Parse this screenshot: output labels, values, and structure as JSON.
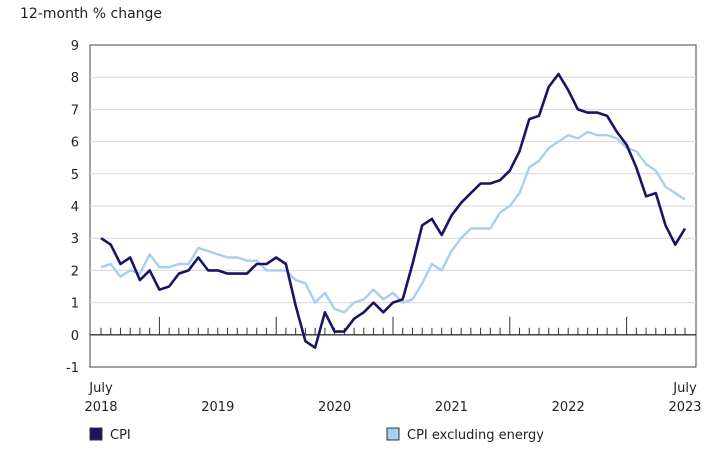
{
  "chart_data": {
    "type": "line",
    "ylabel": "12-month % change",
    "ylim": [
      -1,
      9
    ],
    "yticks": [
      -1,
      0,
      1,
      2,
      3,
      4,
      5,
      6,
      7,
      8,
      9
    ],
    "x_start": "2018-07",
    "x_end": "2023-07",
    "x_labels": [
      {
        "month_index": 0,
        "line1": "July",
        "line2": "2018"
      },
      {
        "month_index": 12,
        "line1": "",
        "line2": "2019"
      },
      {
        "month_index": 24,
        "line1": "",
        "line2": "2020"
      },
      {
        "month_index": 36,
        "line1": "",
        "line2": "2021"
      },
      {
        "month_index": 48,
        "line1": "",
        "line2": "2022"
      },
      {
        "month_index": 60,
        "line1": "July",
        "line2": "2023"
      }
    ],
    "grid": true,
    "legend_position": "bottom",
    "series": [
      {
        "name": "CPI",
        "color": "#1a1464",
        "values": [
          3.0,
          2.8,
          2.2,
          2.4,
          1.7,
          2.0,
          1.4,
          1.5,
          1.9,
          2.0,
          2.4,
          2.0,
          2.0,
          1.9,
          1.9,
          1.9,
          2.2,
          2.2,
          2.4,
          2.2,
          0.9,
          -0.2,
          -0.4,
          0.7,
          0.1,
          0.1,
          0.5,
          0.7,
          1.0,
          0.7,
          1.0,
          1.1,
          2.2,
          3.4,
          3.6,
          3.1,
          3.7,
          4.1,
          4.4,
          4.7,
          4.7,
          4.8,
          5.1,
          5.7,
          6.7,
          6.8,
          7.7,
          8.1,
          7.6,
          7.0,
          6.9,
          6.9,
          6.8,
          6.3,
          5.9,
          5.2,
          4.3,
          4.4,
          3.4,
          2.8,
          3.3
        ]
      },
      {
        "name": "CPI excluding energy",
        "color": "#a8cef0",
        "values": [
          2.1,
          2.2,
          1.8,
          2.0,
          1.9,
          2.5,
          2.1,
          2.1,
          2.2,
          2.2,
          2.7,
          2.6,
          2.5,
          2.4,
          2.4,
          2.3,
          2.3,
          2.0,
          2.0,
          2.0,
          1.7,
          1.6,
          1.0,
          1.3,
          0.8,
          0.7,
          1.0,
          1.1,
          1.4,
          1.1,
          1.3,
          1.0,
          1.1,
          1.6,
          2.2,
          2.0,
          2.6,
          3.0,
          3.3,
          3.3,
          3.3,
          3.8,
          4.0,
          4.4,
          5.2,
          5.4,
          5.8,
          6.0,
          6.2,
          6.1,
          6.3,
          6.2,
          6.2,
          6.1,
          5.8,
          5.7,
          5.3,
          5.1,
          4.6,
          4.4,
          4.2
        ]
      }
    ]
  }
}
